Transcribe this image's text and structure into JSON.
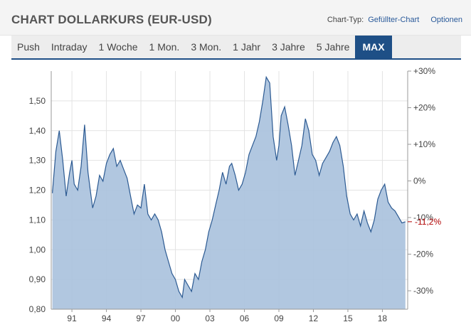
{
  "header": {
    "title": "CHART DOLLARKURS (EUR-USD)",
    "chart_type_label": "Chart-Typ:",
    "chart_type_value": "Gefüllter-Chart",
    "options_label": "Optionen"
  },
  "tabs": [
    {
      "label": "Push",
      "active": false
    },
    {
      "label": "Intraday",
      "active": false
    },
    {
      "label": "1 Woche",
      "active": false
    },
    {
      "label": "1 Mon.",
      "active": false
    },
    {
      "label": "3 Mon.",
      "active": false
    },
    {
      "label": "1 Jahr",
      "active": false
    },
    {
      "label": "3 Jahre",
      "active": false
    },
    {
      "label": "5 Jahre",
      "active": false
    },
    {
      "label": "MAX",
      "active": true
    }
  ],
  "chart_data": {
    "type": "area",
    "title": "",
    "xlabel": "",
    "ylabel": "",
    "ylim": [
      0.8,
      1.6
    ],
    "xlim": [
      1989.2,
      2020.2
    ],
    "grid": true,
    "colors": {
      "fill": "#a9c1dd",
      "line": "#2c5a92",
      "negative_label": "#b00000"
    },
    "x_ticks": [
      {
        "x": 1991,
        "label": "91"
      },
      {
        "x": 1994,
        "label": "94"
      },
      {
        "x": 1997,
        "label": "97"
      },
      {
        "x": 2000,
        "label": "00"
      },
      {
        "x": 2003,
        "label": "03"
      },
      {
        "x": 2006,
        "label": "06"
      },
      {
        "x": 2009,
        "label": "09"
      },
      {
        "x": 2012,
        "label": "12"
      },
      {
        "x": 2015,
        "label": "15"
      },
      {
        "x": 2018,
        "label": "18"
      }
    ],
    "y_ticks_left": [
      {
        "value": 0.8,
        "label": "0,80"
      },
      {
        "value": 0.9,
        "label": "0,90"
      },
      {
        "value": 1.0,
        "label": "1,00"
      },
      {
        "value": 1.1,
        "label": "1,10"
      },
      {
        "value": 1.2,
        "label": "1,20"
      },
      {
        "value": 1.3,
        "label": "1,30"
      },
      {
        "value": 1.4,
        "label": "1,40"
      },
      {
        "value": 1.5,
        "label": "1,50"
      }
    ],
    "y_ticks_right": [
      {
        "value": 1.6,
        "label": "+30%"
      },
      {
        "value": 1.477,
        "label": "+20%"
      },
      {
        "value": 1.354,
        "label": "+10%"
      },
      {
        "value": 1.231,
        "label": "0%"
      },
      {
        "value": 1.108,
        "label": "-10%"
      },
      {
        "value": 0.985,
        "label": "-20%"
      },
      {
        "value": 0.862,
        "label": "-30%"
      }
    ],
    "current": {
      "value": 1.094,
      "label": "-11,2%"
    },
    "series": [
      {
        "x": [
          1989.3,
          1989.6,
          1989.9,
          1990.2,
          1990.5,
          1990.8,
          1991.0,
          1991.2,
          1991.5,
          1991.8,
          1992.1,
          1992.4,
          1992.6,
          1992.8,
          1993.1,
          1993.4,
          1993.7,
          1994.0,
          1994.3,
          1994.6,
          1994.9,
          1995.2,
          1995.5,
          1995.8,
          1996.1,
          1996.4,
          1996.7,
          1997.0,
          1997.3,
          1997.6,
          1997.9,
          1998.2,
          1998.5,
          1998.8,
          1999.1,
          1999.4,
          1999.7,
          2000.0,
          2000.3,
          2000.6,
          2000.8,
          2001.1,
          2001.4,
          2001.7,
          2002.0,
          2002.3,
          2002.6,
          2002.9,
          2003.2,
          2003.5,
          2003.8,
          2004.1,
          2004.4,
          2004.7,
          2004.9,
          2005.2,
          2005.5,
          2005.8,
          2006.1,
          2006.4,
          2006.7,
          2007.0,
          2007.3,
          2007.6,
          2007.9,
          2008.2,
          2008.5,
          2008.8,
          2009.0,
          2009.2,
          2009.5,
          2009.8,
          2010.1,
          2010.4,
          2010.7,
          2011.0,
          2011.3,
          2011.6,
          2011.9,
          2012.2,
          2012.5,
          2012.8,
          2013.1,
          2013.4,
          2013.7,
          2014.0,
          2014.3,
          2014.6,
          2014.9,
          2015.2,
          2015.5,
          2015.8,
          2016.1,
          2016.4,
          2016.7,
          2017.0,
          2017.3,
          2017.6,
          2017.9,
          2018.2,
          2018.5,
          2018.8,
          2019.1,
          2019.4,
          2019.7,
          2020.0
        ],
        "values": [
          1.19,
          1.33,
          1.4,
          1.3,
          1.18,
          1.26,
          1.3,
          1.22,
          1.2,
          1.28,
          1.42,
          1.26,
          1.2,
          1.14,
          1.18,
          1.25,
          1.23,
          1.29,
          1.32,
          1.34,
          1.28,
          1.3,
          1.27,
          1.24,
          1.18,
          1.12,
          1.15,
          1.14,
          1.22,
          1.12,
          1.1,
          1.12,
          1.1,
          1.06,
          1.0,
          0.96,
          0.92,
          0.9,
          0.86,
          0.84,
          0.9,
          0.88,
          0.86,
          0.92,
          0.9,
          0.96,
          1.0,
          1.06,
          1.1,
          1.15,
          1.2,
          1.26,
          1.22,
          1.28,
          1.29,
          1.25,
          1.2,
          1.22,
          1.26,
          1.32,
          1.35,
          1.38,
          1.43,
          1.5,
          1.58,
          1.56,
          1.38,
          1.3,
          1.35,
          1.45,
          1.48,
          1.42,
          1.35,
          1.25,
          1.3,
          1.35,
          1.44,
          1.4,
          1.32,
          1.3,
          1.25,
          1.29,
          1.31,
          1.33,
          1.36,
          1.38,
          1.35,
          1.28,
          1.18,
          1.12,
          1.1,
          1.12,
          1.08,
          1.13,
          1.09,
          1.06,
          1.1,
          1.17,
          1.2,
          1.22,
          1.16,
          1.14,
          1.13,
          1.11,
          1.09,
          1.094
        ]
      }
    ]
  }
}
